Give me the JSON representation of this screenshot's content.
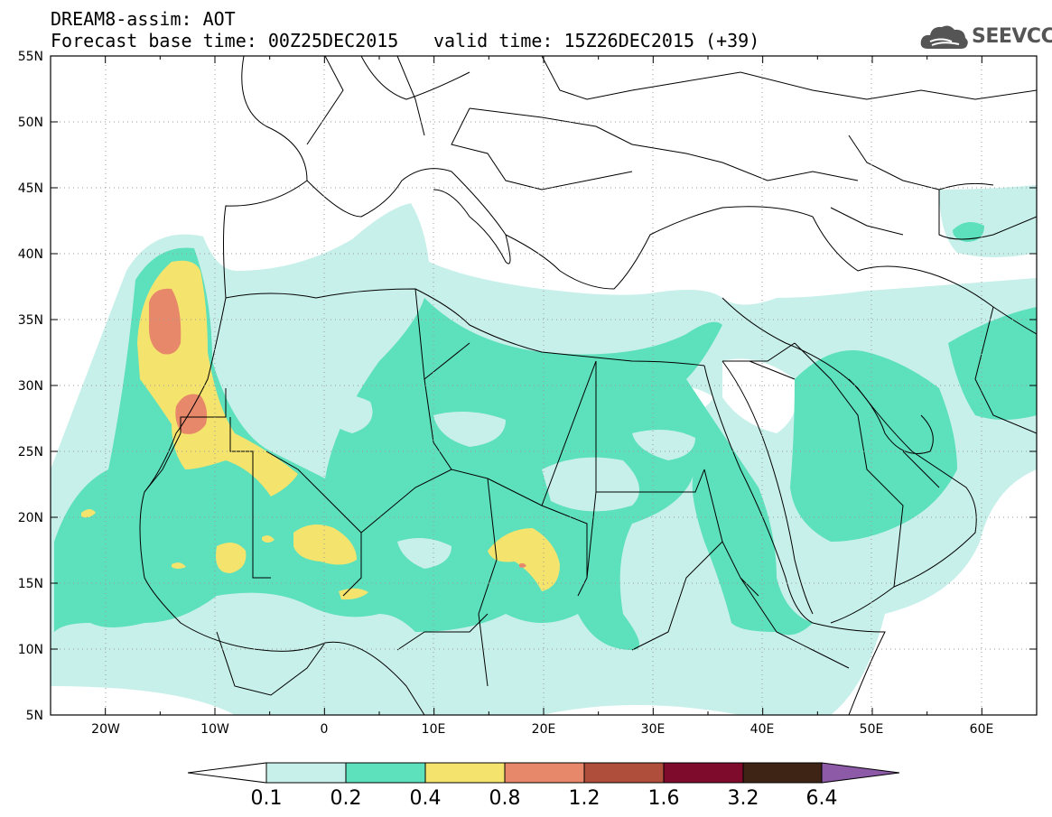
{
  "header": {
    "line1": "DREAM8-assim: AOT",
    "line2": "Forecast base time: 00Z25DEC2015",
    "valid": "valid time: 15Z26DEC2015 (+39)",
    "logo_text": "SEEVCCC",
    "logo_icon": "cloud-icon"
  },
  "map": {
    "lon_range": [
      -25,
      65
    ],
    "lat_range": [
      5,
      55
    ],
    "x_ticks": [
      "20W",
      "10W",
      "0",
      "10E",
      "20E",
      "30E",
      "40E",
      "50E",
      "60E"
    ],
    "y_ticks": [
      "55N",
      "50N",
      "45N",
      "40N",
      "35N",
      "30N",
      "25N",
      "20N",
      "15N",
      "10N",
      "5N"
    ],
    "gridlines": true
  },
  "colorbar": {
    "labels": [
      "0.1",
      "0.2",
      "0.4",
      "0.8",
      "1.2",
      "1.6",
      "3.2",
      "6.4"
    ],
    "colors": [
      "#ffffff",
      "#c8f0ea",
      "#5de0bc",
      "#f4e46e",
      "#e8886a",
      "#b04e3c",
      "#7e0a2c",
      "#3e2414",
      "#8c5aa6"
    ]
  }
}
